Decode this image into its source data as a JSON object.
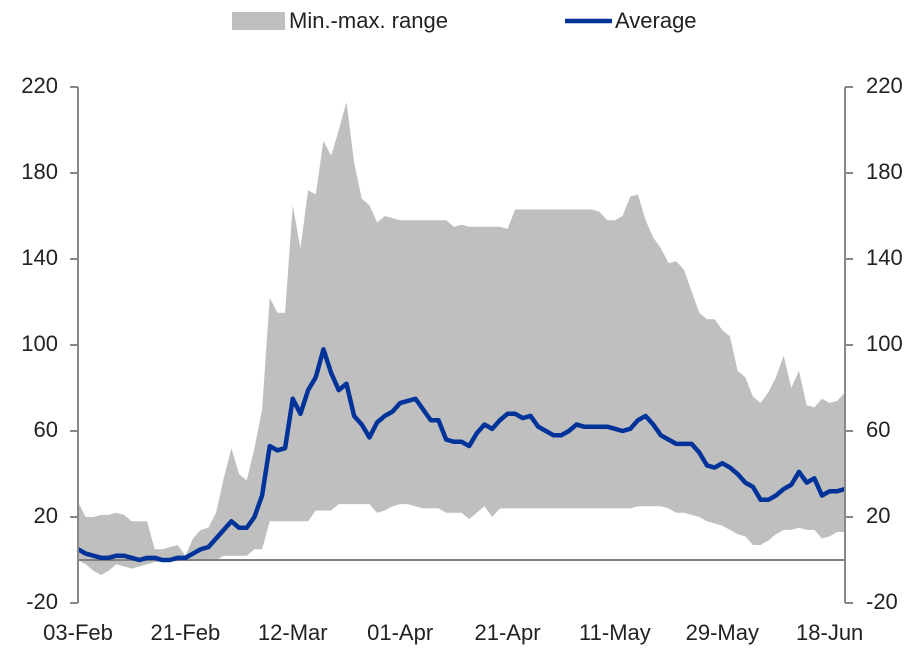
{
  "chart_data": {
    "type": "band-line",
    "categories": [
      "03-Feb",
      null,
      null,
      null,
      null,
      null,
      null,
      null,
      null,
      null,
      null,
      null,
      null,
      null,
      "21-Feb",
      null,
      null,
      null,
      null,
      null,
      null,
      null,
      null,
      null,
      null,
      null,
      null,
      null,
      "12-Mar",
      null,
      null,
      null,
      null,
      null,
      null,
      null,
      null,
      null,
      null,
      null,
      null,
      null,
      "01-Apr",
      null,
      null,
      null,
      null,
      null,
      null,
      null,
      null,
      null,
      null,
      null,
      null,
      null,
      "21-Apr",
      null,
      null,
      null,
      null,
      null,
      null,
      null,
      null,
      null,
      null,
      null,
      null,
      null,
      "11-May",
      null,
      null,
      null,
      null,
      null,
      null,
      null,
      null,
      null,
      null,
      null,
      null,
      null,
      "29-May",
      null,
      null,
      null,
      null,
      null,
      null,
      null,
      null,
      null,
      null,
      null,
      null,
      null,
      "18-Jun",
      null,
      null
    ],
    "series": [
      {
        "name": "Min.-max. range",
        "color": "#bfbfbf",
        "upper": [
          27,
          20,
          20,
          21,
          21,
          22,
          21,
          18,
          18,
          18,
          5,
          5,
          6,
          7,
          2,
          10,
          14,
          15,
          22,
          38,
          52,
          40,
          37,
          52,
          70,
          122,
          115,
          115,
          165,
          145,
          172,
          170,
          195,
          188,
          200,
          213,
          185,
          168,
          165,
          157,
          160,
          159,
          158,
          158,
          158,
          158,
          158,
          158,
          158,
          155,
          156,
          155,
          155,
          155,
          155,
          155,
          154,
          163,
          163,
          163,
          163,
          163,
          163,
          163,
          163,
          163,
          163,
          163,
          162,
          158,
          158,
          160,
          169,
          170,
          158,
          150,
          145,
          138,
          139,
          135,
          125,
          115,
          112,
          112,
          107,
          104,
          88,
          85,
          76,
          73,
          78,
          85,
          95,
          80,
          88,
          72,
          71,
          75,
          73,
          74,
          78
        ],
        "lower": [
          0,
          -2,
          -5,
          -7,
          -5,
          -2,
          -3,
          -4,
          -3,
          -2,
          -1,
          -1,
          0,
          0,
          0,
          0,
          0,
          0,
          0,
          2,
          2,
          2,
          2,
          5,
          5,
          18,
          18,
          18,
          18,
          18,
          18,
          23,
          23,
          23,
          26,
          26,
          26,
          26,
          26,
          22,
          23,
          25,
          26,
          26,
          25,
          24,
          24,
          24,
          22,
          22,
          22,
          19,
          22,
          25,
          20,
          24,
          24,
          24,
          24,
          24,
          24,
          24,
          24,
          24,
          24,
          24,
          24,
          24,
          24,
          24,
          24,
          24,
          24,
          25,
          25,
          25,
          25,
          24,
          22,
          22,
          21,
          20,
          18,
          17,
          16,
          14,
          12,
          11,
          7,
          7,
          9,
          12,
          14,
          14,
          15,
          14,
          14,
          10,
          11,
          13,
          13
        ]
      },
      {
        "name": "Average",
        "color": "#003399",
        "values": [
          5,
          3,
          2,
          1,
          1,
          2,
          2,
          1,
          0,
          1,
          1,
          0,
          0,
          1,
          1,
          3,
          5,
          6,
          10,
          14,
          18,
          15,
          15,
          20,
          30,
          53,
          51,
          52,
          75,
          68,
          79,
          85,
          98,
          87,
          79,
          82,
          67,
          63,
          57,
          64,
          67,
          69,
          73,
          74,
          75,
          70,
          65,
          65,
          56,
          55,
          55,
          53,
          59,
          63,
          61,
          65,
          68,
          68,
          66,
          67,
          62,
          60,
          58,
          58,
          60,
          63,
          62,
          62,
          62,
          62,
          61,
          60,
          61,
          65,
          67,
          63,
          58,
          56,
          54,
          54,
          54,
          50,
          44,
          43,
          45,
          43,
          40,
          36,
          34,
          28,
          28,
          30,
          33,
          35,
          41,
          36,
          38,
          30,
          32,
          32,
          33
        ]
      }
    ],
    "ylim": [
      -20,
      220
    ],
    "yticks": [
      -20,
      20,
      60,
      100,
      140,
      180,
      220
    ],
    "y2lim": [
      -20,
      220
    ],
    "y2ticks": [
      -20,
      20,
      60,
      100,
      140,
      180,
      220
    ],
    "legend": "top"
  }
}
